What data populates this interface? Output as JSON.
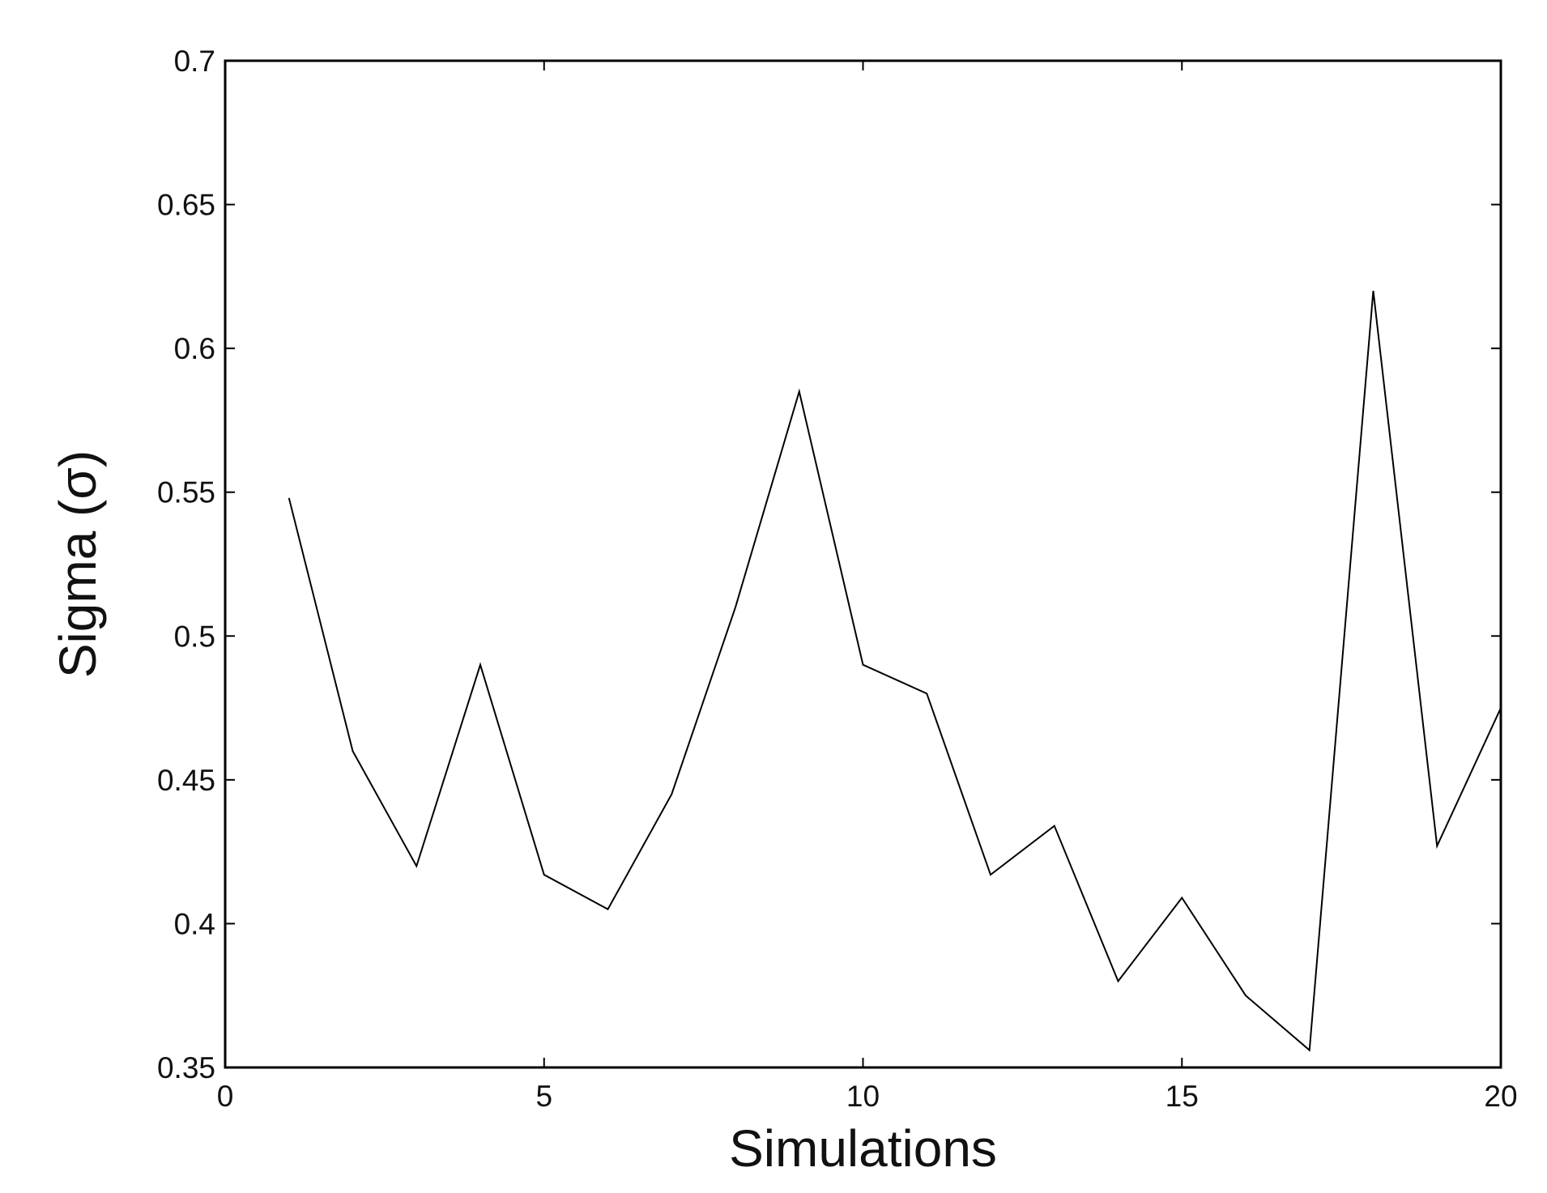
{
  "chart_data": {
    "type": "line",
    "title": "",
    "xlabel": "Simulations",
    "ylabel": "Sigma (σ)",
    "xlim": [
      0,
      20
    ],
    "ylim": [
      0.35,
      0.7
    ],
    "x_ticks": [
      0,
      5,
      10,
      15,
      20
    ],
    "x_tick_labels": [
      "0",
      "5",
      "10",
      "15",
      "20"
    ],
    "y_ticks": [
      0.35,
      0.4,
      0.45,
      0.5,
      0.55,
      0.6,
      0.65,
      0.7
    ],
    "y_tick_labels": [
      "0.35",
      "0.4",
      "0.45",
      "0.5",
      "0.55",
      "0.6",
      "0.65",
      "0.7"
    ],
    "grid": false,
    "series": [
      {
        "color": "#000000",
        "x": [
          1,
          2,
          3,
          4,
          5,
          6,
          7,
          8,
          9,
          10,
          11,
          12,
          13,
          14,
          15,
          16,
          17,
          18,
          19,
          20
        ],
        "y": [
          0.548,
          0.46,
          0.42,
          0.49,
          0.417,
          0.405,
          0.445,
          0.51,
          0.585,
          0.49,
          0.48,
          0.417,
          0.434,
          0.38,
          0.409,
          0.375,
          0.356,
          0.62,
          0.427,
          0.475
        ]
      }
    ]
  }
}
